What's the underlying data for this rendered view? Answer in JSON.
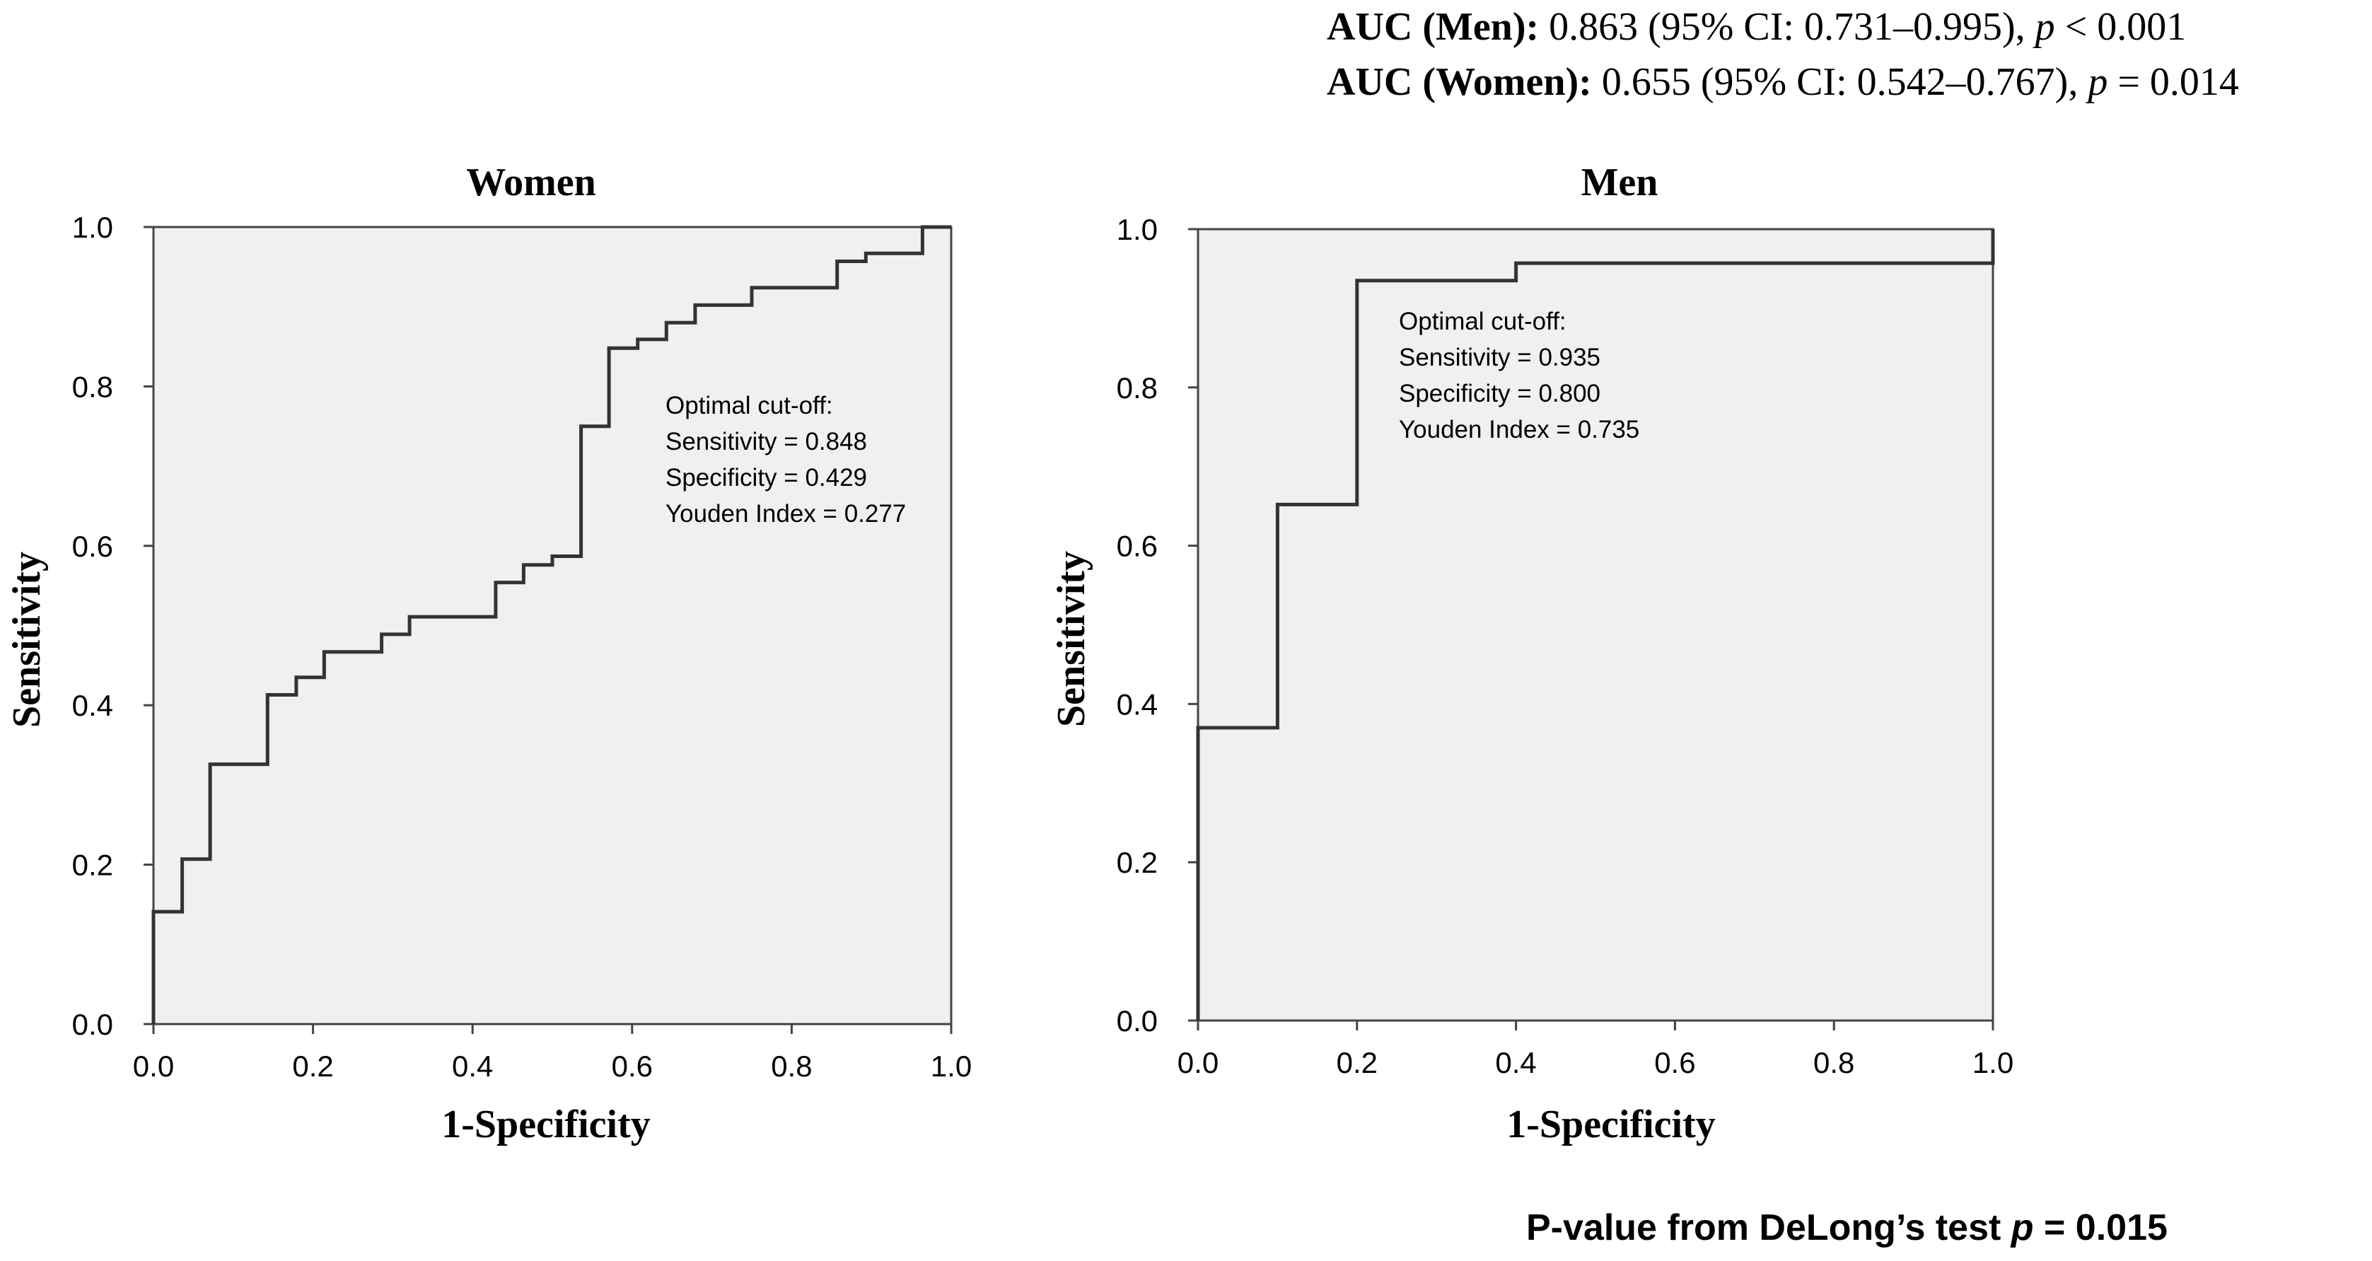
{
  "annotations": {
    "auc_men": {
      "label": "AUC (Men):",
      "value_pre": "0.863 (95% CI: 0.731–0.995), ",
      "p_symbol": "p",
      "p_rest": " < 0.001"
    },
    "auc_women": {
      "label": "AUC (Women):",
      "value_pre": "0.655 (95% CI: 0.542–0.767), ",
      "p_symbol": "p",
      "p_rest": " = 0.014"
    },
    "delong": {
      "pre": "P-value from DeLong’s test ",
      "p_symbol": "p",
      "post": " = 0.015"
    }
  },
  "chart_data": [
    {
      "type": "line",
      "subtype": "roc-step",
      "title": "Women",
      "xlabel": "1-Specificity",
      "ylabel": "Sensitivity",
      "xlim": [
        0,
        1
      ],
      "ylim": [
        0,
        1
      ],
      "xticks": [
        "0.0",
        "0.2",
        "0.4",
        "0.6",
        "0.8",
        "1.0"
      ],
      "yticks": [
        "0.0",
        "0.2",
        "0.4",
        "0.6",
        "0.8",
        "1.0"
      ],
      "grid": false,
      "plot_background": "#f0f0f0",
      "line_color": "#333333",
      "series": [
        {
          "name": "ROC",
          "x": [
            0,
            0,
            0.036,
            0.036,
            0.071,
            0.071,
            0.143,
            0.143,
            0.179,
            0.179,
            0.214,
            0.214,
            0.286,
            0.286,
            0.321,
            0.321,
            0.429,
            0.429,
            0.464,
            0.464,
            0.5,
            0.5,
            0.536,
            0.536,
            0.571,
            0.571,
            0.607,
            0.607,
            0.643,
            0.643,
            0.679,
            0.679,
            0.75,
            0.75,
            0.857,
            0.857,
            0.893,
            0.893,
            0.964,
            0.964,
            1.0
          ],
          "y": [
            0,
            0.141,
            0.141,
            0.207,
            0.207,
            0.326,
            0.326,
            0.413,
            0.413,
            0.435,
            0.435,
            0.467,
            0.467,
            0.489,
            0.489,
            0.511,
            0.511,
            0.554,
            0.554,
            0.576,
            0.576,
            0.587,
            0.587,
            0.75,
            0.75,
            0.848,
            0.848,
            0.859,
            0.859,
            0.88,
            0.88,
            0.902,
            0.902,
            0.924,
            0.924,
            0.957,
            0.957,
            0.967,
            0.967,
            1.0,
            1.0
          ]
        }
      ],
      "annotation": [
        "Optimal cut-off:",
        "Sensitivity = 0.848",
        "Specificity = 0.429",
        "Youden Index = 0.277"
      ]
    },
    {
      "type": "line",
      "subtype": "roc-step",
      "title": "Men",
      "xlabel": "1-Specificity",
      "ylabel": "Sensitivity",
      "xlim": [
        0,
        1
      ],
      "ylim": [
        0,
        1
      ],
      "xticks": [
        "0.0",
        "0.2",
        "0.4",
        "0.6",
        "0.8",
        "1.0"
      ],
      "yticks": [
        "0.0",
        "0.2",
        "0.4",
        "0.6",
        "0.8",
        "1.0"
      ],
      "grid": false,
      "plot_background": "#f0f0f0",
      "line_color": "#333333",
      "series": [
        {
          "name": "ROC",
          "x": [
            0,
            0,
            0.1,
            0.1,
            0.2,
            0.2,
            0.4,
            0.4,
            1.0,
            1.0
          ],
          "y": [
            0,
            0.37,
            0.37,
            0.652,
            0.652,
            0.935,
            0.935,
            0.957,
            0.957,
            1.0
          ]
        }
      ],
      "annotation": [
        "Optimal cut-off:",
        "Sensitivity = 0.935",
        "Specificity = 0.800",
        "Youden Index = 0.735"
      ]
    }
  ]
}
